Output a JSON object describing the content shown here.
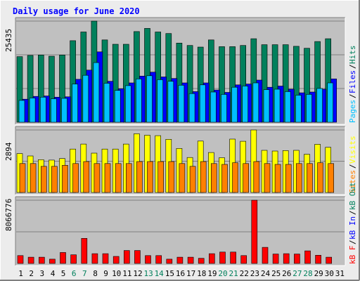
{
  "title": "Daily usage for June 2020",
  "colors": {
    "background": "#ececec",
    "panel": "#c0c0c0",
    "title_text": "#0000ff",
    "hits": "#00805c",
    "files": "#0000ff",
    "pages": "#00c0ff",
    "visits": "#ffff00",
    "sites": "#ff8000",
    "kb_f": "#ff0000",
    "kb_in": "#0000ff",
    "kb_out": "#00805c",
    "weekend_day": "#00805c"
  },
  "chart_data": [
    {
      "type": "bar",
      "panel": "hits-files-pages",
      "ylabel_max": "25435",
      "ylim": [
        0,
        25435
      ],
      "legend": [
        {
          "label": "Pages",
          "color": "#00c0ff"
        },
        {
          "label": "Files",
          "color": "#0000ff"
        },
        {
          "label": "Hits",
          "color": "#00805c"
        }
      ],
      "categories": [
        "1",
        "2",
        "3",
        "4",
        "5",
        "6",
        "7",
        "8",
        "9",
        "10",
        "11",
        "12",
        "13",
        "14",
        "15",
        "16",
        "17",
        "18",
        "19",
        "20",
        "21",
        "22",
        "23",
        "24",
        "25",
        "26",
        "27",
        "28",
        "29",
        "30",
        "31"
      ],
      "series": [
        {
          "name": "Hits",
          "values": [
            16500,
            16800,
            16900,
            16600,
            16900,
            20500,
            22700,
            25435,
            20700,
            19600,
            19600,
            22800,
            23600,
            22700,
            22300,
            19900,
            19300,
            18900,
            20700,
            19000,
            19000,
            19300,
            21000,
            19500,
            19500,
            19500,
            19100,
            18600,
            20300,
            21000,
            null
          ]
        },
        {
          "name": "Files",
          "values": [
            5800,
            6500,
            6600,
            6300,
            6400,
            10800,
            13100,
            17700,
            10300,
            8400,
            9900,
            11600,
            12600,
            11400,
            11000,
            9900,
            7700,
            9900,
            8100,
            7500,
            9400,
            9600,
            10600,
            8800,
            9100,
            8300,
            7400,
            7600,
            8300,
            10900,
            null
          ]
        },
        {
          "name": "Pages",
          "values": [
            5500,
            6100,
            6300,
            5900,
            6000,
            9600,
            11800,
            15000,
            9800,
            8000,
            9200,
            10900,
            11700,
            10700,
            10300,
            9300,
            7200,
            9400,
            7600,
            7000,
            8800,
            9100,
            9900,
            8200,
            8300,
            7700,
            6800,
            7000,
            8500,
            9900,
            null
          ]
        }
      ]
    },
    {
      "type": "bar",
      "panel": "visits-sites",
      "ylabel_max": "2894",
      "ylim": [
        0,
        2894
      ],
      "legend": [
        {
          "label": "Sites",
          "color": "#ff8000"
        },
        {
          "label": "Visits",
          "color": "#ffff00"
        }
      ],
      "categories": [
        "1",
        "2",
        "3",
        "4",
        "5",
        "6",
        "7",
        "8",
        "9",
        "10",
        "11",
        "12",
        "13",
        "14",
        "15",
        "16",
        "17",
        "18",
        "19",
        "20",
        "21",
        "22",
        "23",
        "24",
        "25",
        "26",
        "27",
        "28",
        "29",
        "30",
        "31"
      ],
      "series": [
        {
          "name": "Visits",
          "values": [
            1800,
            1690,
            1520,
            1500,
            1570,
            2010,
            2240,
            1820,
            2010,
            2010,
            2240,
            2720,
            2650,
            2630,
            2460,
            2040,
            1620,
            2380,
            1850,
            1610,
            2470,
            2370,
            2894,
            1950,
            1920,
            1940,
            1950,
            1770,
            2230,
            2090,
            null
          ]
        },
        {
          "name": "Sites",
          "values": [
            1340,
            1340,
            1210,
            1210,
            1260,
            1340,
            1430,
            1340,
            1340,
            1340,
            1340,
            1430,
            1430,
            1430,
            1430,
            1340,
            1210,
            1430,
            1340,
            1300,
            1380,
            1340,
            1430,
            1340,
            1300,
            1300,
            1340,
            1340,
            1380,
            1340,
            null
          ]
        }
      ]
    },
    {
      "type": "bar",
      "panel": "kbytes",
      "ylabel_max": "8066776",
      "ylim": [
        0,
        8066776
      ],
      "legend": [
        {
          "label": "kB F",
          "color": "#ff0000"
        },
        {
          "label": "kB In",
          "color": "#0000ff"
        },
        {
          "label": "kB Out",
          "color": "#00805c"
        }
      ],
      "categories": [
        "1",
        "2",
        "3",
        "4",
        "5",
        "6",
        "7",
        "8",
        "9",
        "10",
        "11",
        "12",
        "13",
        "14",
        "15",
        "16",
        "17",
        "18",
        "19",
        "20",
        "21",
        "22",
        "23",
        "24",
        "25",
        "26",
        "27",
        "28",
        "29",
        "30",
        "31"
      ],
      "series": [
        {
          "name": "kB F",
          "values": [
            1000000,
            800000,
            800000,
            550000,
            1400000,
            1100000,
            3200000,
            1250000,
            1250000,
            900000,
            1650000,
            1650000,
            1000000,
            1000000,
            550000,
            800000,
            800000,
            650000,
            1250000,
            1450000,
            1450000,
            1000000,
            8066776,
            2050000,
            1200000,
            1250000,
            1200000,
            1600000,
            1050000,
            800000,
            null
          ]
        }
      ]
    }
  ],
  "x_axis": {
    "days": [
      "1",
      "2",
      "3",
      "4",
      "5",
      "6",
      "7",
      "8",
      "9",
      "10",
      "11",
      "12",
      "13",
      "14",
      "15",
      "16",
      "17",
      "18",
      "19",
      "20",
      "21",
      "22",
      "23",
      "24",
      "25",
      "26",
      "27",
      "28",
      "29",
      "30",
      "31"
    ],
    "weekend_days": [
      "6",
      "7",
      "13",
      "14",
      "20",
      "21",
      "27",
      "28"
    ]
  }
}
